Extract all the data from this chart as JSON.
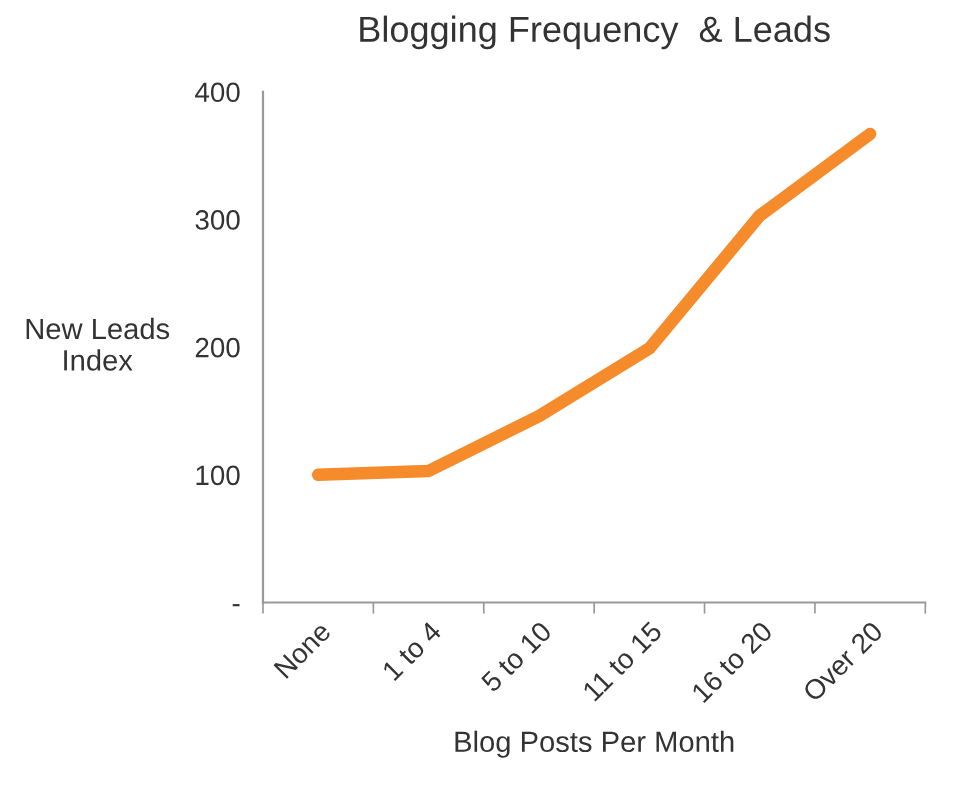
{
  "chart_data": {
    "type": "line",
    "title": "Blogging Frequency  & Leads",
    "xlabel": "Blog Posts Per Month",
    "ylabel": "New Leads\nIndex",
    "categories": [
      "None",
      "1 to 4",
      "5 to 10",
      "11 to 15",
      "16 to 20",
      "Over 20"
    ],
    "series": [
      {
        "color": "#f68b2c",
        "values": [
          100,
          103,
          146,
          199,
          303,
          367
        ]
      }
    ],
    "ylim": [
      0,
      400
    ],
    "yticks": [
      {
        "value": 0,
        "label": "-"
      },
      100,
      200,
      300,
      400
    ],
    "grid": false,
    "legend": false,
    "marker": "none",
    "line_style": "solid"
  }
}
